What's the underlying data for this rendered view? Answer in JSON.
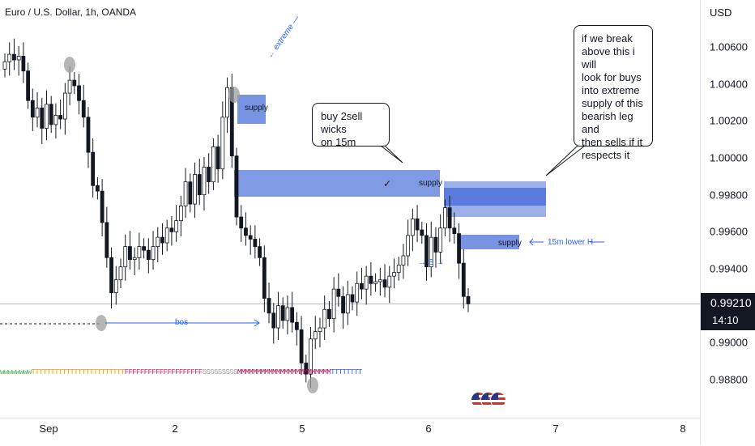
{
  "header": {
    "symbol": "Euro / U.S. Dollar, 1h, OANDA",
    "currency": "USD"
  },
  "price_axis": {
    "labels": [
      "1.00600",
      "1.00400",
      "1.00200",
      "1.00000",
      "0.99800",
      "0.99600",
      "0.99400",
      "0.99000",
      "0.98800"
    ]
  },
  "time_axis": {
    "labels": [
      "Sep",
      "2",
      "5",
      "6",
      "7",
      "8"
    ]
  },
  "last_price": {
    "price": "0.99210",
    "countdown": "14:10"
  },
  "annotations": {
    "callout_1": "buy 2sell wicks\non 15m",
    "callout_2": "if we break\nabove this i will\nlook for buys\ninto extreme\nsupply of this\nbearish leg and\nthen sells if it\nrespects it",
    "supply_1": "supply",
    "supply_2": "supply",
    "supply_3": "supply",
    "extreme": "← extreme —",
    "bos": "bos",
    "s_mark": "→ S →",
    "lower_high": "15m lower H",
    "check": "✓"
  },
  "session_letters": {
    "groups": [
      {
        "text": "wwwwwwww",
        "color": "#4caf50"
      },
      {
        "text": "TTTTTTTTTTTTTTTTTTTTTTTT",
        "color": "#ff9800"
      },
      {
        "text": "FFFFFFFFFFFFFFFFFFFF",
        "color": "#e91e63"
      },
      {
        "text": "SSSSSSSSS",
        "color": "#9e9e9e"
      },
      {
        "text": "MMMMMMMMMMMMMMMMMMMMMMMM",
        "color": "#ad1457"
      },
      {
        "text": "TTTTTTTT",
        "color": "#2962ff"
      }
    ]
  },
  "colors": {
    "up": "#ffffff",
    "down": "#131722",
    "zone": "#4a6fd8",
    "annotation": "#2962ff"
  },
  "chart_data": {
    "type": "candlestick",
    "title": "Euro / U.S. Dollar, 1h, OANDA",
    "ylim": [
      0.9868,
      1.0078
    ],
    "ylabel": "USD",
    "x_ticks": [
      "Sep",
      "2",
      "5",
      "6",
      "7",
      "8"
    ],
    "last_price": 0.9921,
    "closes": [
      1.0052,
      1.0056,
      1.0053,
      1.0055,
      1.0047,
      1.0031,
      1.0022,
      1.0027,
      1.0016,
      1.0029,
      1.0018,
      1.0023,
      1.0021,
      1.0035,
      1.0042,
      1.0039,
      1.0031,
      1.0022,
      1.0003,
      0.9985,
      0.9982,
      0.9965,
      0.9946,
      0.9927,
      0.9934,
      0.9941,
      0.9952,
      0.9945,
      0.9946,
      0.9952,
      0.995,
      0.9945,
      0.9952,
      0.9957,
      0.9954,
      0.9962,
      0.996,
      0.9966,
      0.9974,
      0.9987,
      0.9975,
      0.9991,
      0.998,
      0.9995,
      0.9987,
      1.0006,
      0.9994,
      1.0022,
      1.0038,
      1.0001,
      0.9968,
      0.9962,
      0.9958,
      0.9956,
      0.9952,
      0.9946,
      0.9924,
      0.9916,
      0.9908,
      0.992,
      0.9912,
      0.9919,
      0.9911,
      0.9907,
      0.9889,
      0.9883,
      0.9902,
      0.9906,
      0.9908,
      0.9918,
      0.9913,
      0.9929,
      0.9925,
      0.9916,
      0.9926,
      0.9922,
      0.9932,
      0.9929,
      0.9936,
      0.9932,
      0.9933,
      0.9934,
      0.993,
      0.9936,
      0.9938,
      0.9942,
      0.9947,
      0.9958,
      0.9967,
      0.9961,
      0.9958,
      0.9941,
      0.9957,
      0.9949,
      0.9962,
      0.9973,
      0.9962,
      0.9959,
      0.9943,
      0.9925,
      0.9921
    ]
  }
}
